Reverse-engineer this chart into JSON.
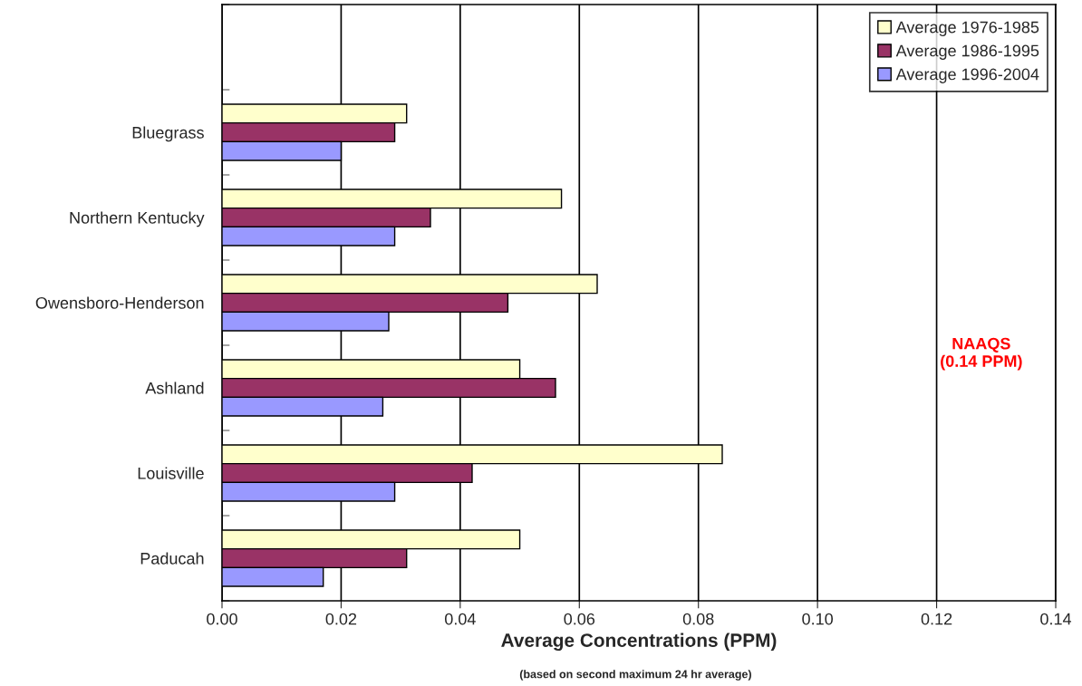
{
  "chart_data": {
    "type": "bar",
    "orientation": "horizontal",
    "xlabel": "Average Concentrations (PPM)",
    "annotations": [
      "(based on second maximum 24 hr average)"
    ],
    "categories": [
      null,
      "Bluegrass",
      "Northern Kentucky",
      "Owensboro-Henderson",
      "Ashland",
      "Louisville",
      "Paducah"
    ],
    "series": [
      {
        "name": "Average 1976-1985",
        "color": "#ffffcc",
        "values": [
          null,
          0.031,
          0.057,
          0.063,
          0.05,
          0.084,
          0.05
        ]
      },
      {
        "name": "Average 1986-1995",
        "color": "#993366",
        "values": [
          null,
          0.029,
          0.035,
          0.048,
          0.056,
          0.042,
          0.031
        ]
      },
      {
        "name": "Average 1996-2004",
        "color": "#9999ff",
        "values": [
          null,
          0.02,
          0.029,
          0.028,
          0.027,
          0.029,
          0.017
        ]
      }
    ],
    "xlim": [
      0,
      0.14
    ],
    "xticks": [
      {
        "value": 0,
        "label": "0.00"
      },
      {
        "value": 0.02,
        "label": "0.02"
      },
      {
        "value": 0.04,
        "label": "0.04"
      },
      {
        "value": 0.06,
        "label": "0.06"
      },
      {
        "value": 0.08,
        "label": "0.08"
      },
      {
        "value": 0.1,
        "label": "0.10"
      },
      {
        "value": 0.12,
        "label": "0.12"
      },
      {
        "value": 0.14,
        "label": "0.14"
      }
    ],
    "ref_lines": [
      {
        "axis": "x",
        "value": 0.14,
        "label": "NAAQS\n(0.14 PPM)",
        "color": "#000000"
      }
    ],
    "grid": "x",
    "legend": "top right"
  }
}
